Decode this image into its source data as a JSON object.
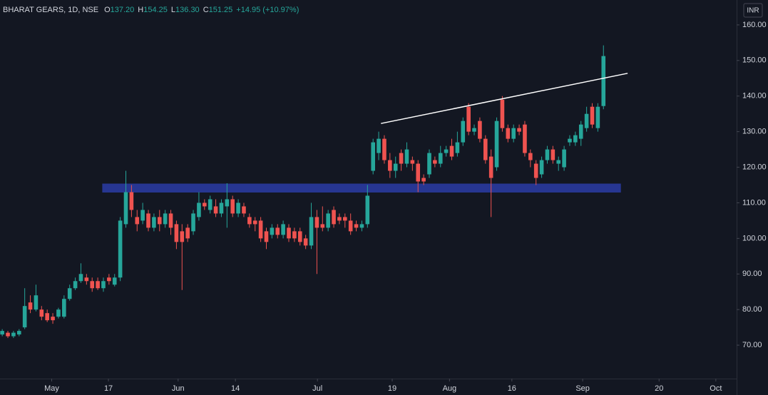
{
  "chart_data": {
    "type": "candlestick",
    "title": "BHARAT GEARS, 1D, NSE",
    "ohlc_legend": [
      {
        "label": "O",
        "value": "137.20"
      },
      {
        "label": "H",
        "value": "154.25"
      },
      {
        "label": "L",
        "value": "136.30"
      },
      {
        "label": "C",
        "value": "151.25"
      }
    ],
    "change": "+14.95 (+10.97%)",
    "currency": "INR",
    "up_color": "#26a69a",
    "down_color": "#ef5350",
    "x": [
      0,
      1,
      2,
      3,
      4,
      5,
      6,
      7,
      8,
      9,
      10,
      11,
      12,
      13,
      14,
      15,
      16,
      17,
      18,
      19,
      20,
      21,
      22,
      23,
      24,
      25,
      26,
      27,
      28,
      29,
      30,
      31,
      32,
      33,
      34,
      35,
      36,
      37,
      38,
      39,
      40,
      41,
      42,
      43,
      44,
      45,
      46,
      47,
      48,
      49,
      50,
      51,
      52,
      53,
      54,
      55,
      56,
      57,
      58,
      59,
      60,
      61,
      62,
      63,
      64,
      65,
      66,
      67,
      68,
      69,
      70,
      71,
      72,
      73,
      74,
      75,
      76,
      77,
      78,
      79,
      80,
      81,
      82,
      83,
      84,
      85,
      86,
      87,
      88,
      89,
      90,
      91,
      92,
      93,
      94,
      95,
      96,
      97,
      98,
      99,
      100,
      101,
      102,
      103,
      104,
      105,
      106,
      107
    ],
    "open": [
      73,
      73.5,
      72.5,
      73,
      75,
      82,
      80,
      80,
      79,
      78,
      78,
      78,
      83,
      86,
      88,
      89,
      88,
      88,
      86,
      89,
      87,
      89,
      104,
      113,
      106,
      105,
      107,
      103,
      106,
      104,
      107,
      104,
      102,
      103,
      102,
      106,
      110,
      108,
      109,
      107,
      109,
      111,
      107,
      109,
      106,
      105,
      105,
      102,
      101,
      103,
      101,
      103,
      102,
      102,
      100,
      98,
      106,
      104,
      103,
      108,
      106,
      106,
      105,
      104,
      103,
      104,
      119,
      124,
      128,
      122,
      119,
      124,
      121,
      122,
      121,
      117,
      118,
      122,
      121,
      124,
      126,
      124,
      127,
      137,
      130,
      133,
      128,
      123,
      120,
      139,
      131,
      128,
      131,
      132,
      124,
      121,
      118,
      122,
      125,
      121,
      120,
      127,
      127,
      128,
      131,
      137,
      131,
      137.2
    ],
    "high": [
      74.5,
      74,
      74,
      74.5,
      86,
      84,
      87,
      81,
      80,
      79,
      80.5,
      84,
      87,
      89,
      93,
      90,
      89,
      89,
      89,
      90,
      90,
      106,
      119,
      115,
      108,
      110,
      108,
      107,
      108,
      108,
      108,
      105,
      104,
      104,
      108,
      113,
      111,
      112,
      111,
      111,
      115.5,
      112,
      111,
      110,
      107,
      106,
      106,
      103,
      104,
      104,
      105,
      104,
      103,
      103,
      101,
      110,
      108,
      109,
      108,
      109,
      107,
      107,
      107,
      105,
      105,
      115,
      128,
      130,
      129,
      124,
      123,
      125,
      127,
      123,
      122,
      118,
      125,
      123,
      126,
      126,
      128,
      130,
      134,
      138,
      132,
      134,
      129,
      125,
      134,
      140,
      132,
      132,
      132,
      133,
      125,
      122,
      123,
      126,
      126,
      123,
      126,
      129,
      130,
      133,
      137,
      138,
      138,
      154.25
    ],
    "low": [
      72.5,
      72,
      72,
      72.5,
      74.5,
      79,
      79.5,
      77,
      76.5,
      76,
      77.5,
      77.5,
      82.5,
      85.5,
      87.5,
      87,
      85,
      85.5,
      85,
      87,
      86.5,
      88,
      103,
      106,
      102,
      104,
      102,
      102,
      102,
      103,
      101,
      97,
      85.5,
      99,
      101,
      105,
      108,
      107,
      106,
      106,
      103,
      106,
      106,
      106,
      103,
      102,
      99,
      97,
      100,
      100,
      100,
      99,
      99,
      98,
      97,
      97,
      90,
      102,
      102,
      103,
      104,
      103,
      101,
      102,
      102,
      103,
      118,
      122,
      121,
      117,
      117,
      119,
      120,
      119,
      113,
      115,
      117,
      120,
      120,
      123,
      122,
      123,
      126,
      129,
      129,
      127,
      121,
      106,
      119,
      130,
      127,
      127,
      129,
      123,
      120,
      115,
      117,
      121,
      121,
      119,
      119,
      126,
      126,
      126,
      130,
      131,
      130,
      136.3
    ],
    "close": [
      74,
      72.5,
      73.5,
      74,
      81,
      80,
      84,
      78,
      77,
      77,
      80,
      83,
      86,
      88,
      90,
      88,
      86,
      86,
      88,
      88,
      89,
      105,
      113,
      108,
      104,
      108,
      103,
      106,
      104,
      107,
      103,
      99,
      99,
      100,
      107,
      110,
      109,
      111,
      107,
      110,
      111,
      107,
      110,
      107,
      104,
      104,
      100,
      99,
      103,
      101,
      104,
      100,
      100,
      99,
      98,
      106,
      103,
      103,
      107,
      104,
      105,
      105,
      102,
      103,
      104,
      112,
      127,
      128,
      122,
      119,
      121,
      121,
      125,
      121,
      116,
      116,
      124,
      121,
      124,
      125,
      123,
      127,
      133,
      130,
      131,
      128,
      122,
      117,
      133,
      131,
      128,
      131,
      130,
      124,
      122,
      117,
      122,
      125,
      122,
      122,
      125,
      128,
      129,
      132,
      135,
      132,
      137,
      151.25
    ],
    "zone": {
      "x": [
        17.8,
        110.1
      ],
      "y": [
        112.9,
        115.4
      ],
      "color": "#2a3a9e"
    },
    "trend_line": {
      "x": [
        67.4,
        111.3
      ],
      "y": [
        132.3,
        146.4
      ],
      "color": "#ffffff"
    },
    "xlim": [
      -0.4,
      130.7
    ],
    "xticks": [
      {
        "value": 8.8,
        "label": "May"
      },
      {
        "value": 18.9,
        "label": "17"
      },
      {
        "value": 31.3,
        "label": "Jun"
      },
      {
        "value": 41.5,
        "label": "14"
      },
      {
        "value": 56.1,
        "label": "Jul"
      },
      {
        "value": 69.4,
        "label": "19"
      },
      {
        "value": 79.6,
        "label": "Aug"
      },
      {
        "value": 90.7,
        "label": "16"
      },
      {
        "value": 103.3,
        "label": "Sep"
      },
      {
        "value": 116.9,
        "label": "20"
      },
      {
        "value": 127,
        "label": "Oct"
      }
    ],
    "ylim": [
      60.8,
      167
    ],
    "yticks": [
      {
        "value": 70,
        "label": "70.00"
      },
      {
        "value": 80,
        "label": "80.00"
      },
      {
        "value": 90,
        "label": "90.00"
      },
      {
        "value": 100,
        "label": "100.00"
      },
      {
        "value": 110,
        "label": "110.00"
      },
      {
        "value": 120,
        "label": "120.00"
      },
      {
        "value": 130,
        "label": "130.00"
      },
      {
        "value": 140,
        "label": "140.00"
      },
      {
        "value": 150,
        "label": "150.00"
      },
      {
        "value": 160,
        "label": "160.00"
      }
    ]
  }
}
